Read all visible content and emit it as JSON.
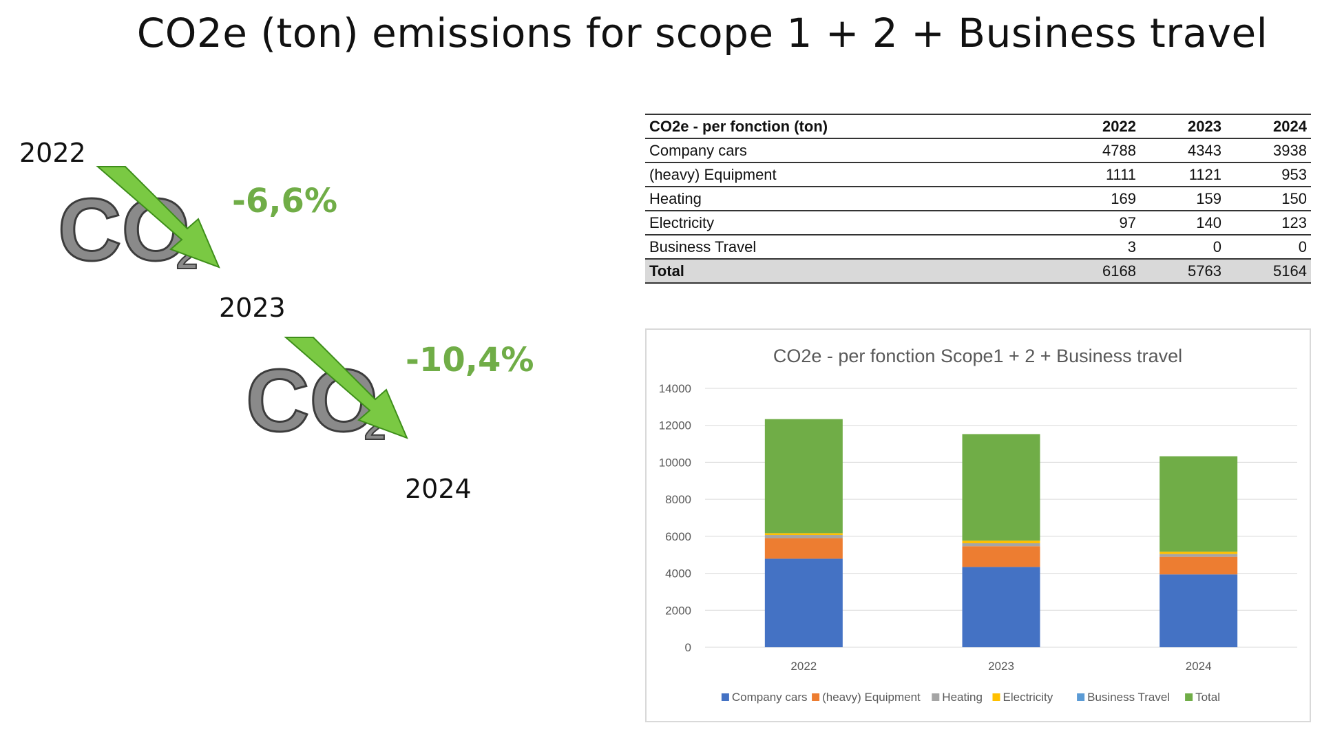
{
  "slide": {
    "title": "CO2e (ton) emissions for scope 1 + 2 + Business travel"
  },
  "left_panel": {
    "years": [
      "2022",
      "2023",
      "2024"
    ],
    "changes": [
      "-6,6%",
      "-10,4%"
    ],
    "logo_text": "CO",
    "logo_subscript": "2",
    "colors": {
      "percent": "#70ad47",
      "arrow": "#7ac943",
      "metal": "#8a8a8a"
    }
  },
  "table": {
    "header": [
      "CO2e - per fonction (ton)",
      "2022",
      "2023",
      "2024"
    ],
    "rows": [
      [
        "Company cars",
        "4788",
        "4343",
        "3938"
      ],
      [
        "(heavy) Equipment",
        "1111",
        "1121",
        "953"
      ],
      [
        "Heating",
        "169",
        "159",
        "150"
      ],
      [
        "Electricity",
        "97",
        "140",
        "123"
      ],
      [
        "Business Travel",
        "3",
        "0",
        "0"
      ]
    ],
    "total": [
      "Total",
      "6168",
      "5763",
      "5164"
    ]
  },
  "chart_data": {
    "type": "bar",
    "stacked": true,
    "title": "CO2e - per fonction Scope1 + 2 + Business travel",
    "categories": [
      "2022",
      "2023",
      "2024"
    ],
    "series": [
      {
        "name": "Company cars",
        "values": [
          4788,
          4343,
          3938
        ],
        "color": "#4472c4"
      },
      {
        "name": "(heavy) Equipment",
        "values": [
          1111,
          1121,
          953
        ],
        "color": "#ed7d31"
      },
      {
        "name": "Heating",
        "values": [
          169,
          159,
          150
        ],
        "color": "#a5a5a5"
      },
      {
        "name": "Electricity",
        "values": [
          97,
          140,
          123
        ],
        "color": "#ffc000"
      },
      {
        "name": "Business Travel",
        "values": [
          3,
          0,
          0
        ],
        "color": "#5b9bd5"
      },
      {
        "name": "Total",
        "values": [
          6168,
          5763,
          5164
        ],
        "color": "#70ad47"
      }
    ],
    "ylim": [
      0,
      14000
    ],
    "yticks": [
      "0",
      "2000",
      "4000",
      "6000",
      "8000",
      "10000",
      "12000",
      "14000"
    ],
    "grid": true,
    "legend_position": "bottom"
  }
}
